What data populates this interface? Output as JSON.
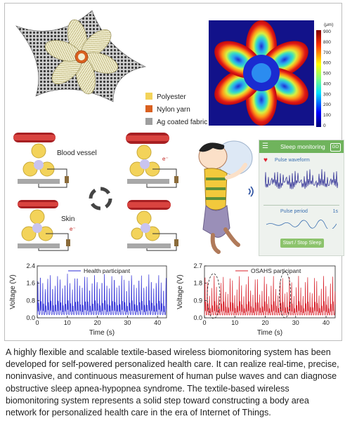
{
  "figure": {
    "legend": [
      {
        "label": "Polyester",
        "color": "#f3d35a"
      },
      {
        "label": "Nylon yarn",
        "color": "#d9601f"
      },
      {
        "label": "Ag coated fabric",
        "color": "#9e9e9e"
      }
    ],
    "colorbar": {
      "unit": "(μm)",
      "ticks": [
        "900",
        "800",
        "700",
        "600",
        "500",
        "400",
        "300",
        "200",
        "100",
        "0"
      ]
    },
    "mechanism": {
      "blood_vessel_label": "Blood vessel",
      "skin_label": "Skin",
      "electron_label": "e⁻"
    },
    "phone": {
      "title": "Sleep monitoring",
      "badge": "GO",
      "pulse_waveform_label": "Pulse waveform",
      "pulse_period_label": "Pulse period",
      "pulse_period_value": "1s",
      "button_label": "Start / Stop Sleep"
    }
  },
  "chart_data": [
    {
      "type": "line",
      "series": [
        {
          "name": "Health participant",
          "color": "#2b2bd6"
        }
      ],
      "xlabel": "Time (s)",
      "ylabel": "Voltage (V)",
      "xlim": [
        0,
        43
      ],
      "ylim": [
        0,
        2.4
      ],
      "xticks": [
        "0",
        "10",
        "20",
        "30",
        "40"
      ],
      "yticks": [
        "0.0",
        "0.8",
        "1.6",
        "2.4"
      ],
      "pulse_period_s": 0.82,
      "peak_range": [
        1.2,
        1.9
      ]
    },
    {
      "type": "line",
      "series": [
        {
          "name": "OSAHS participant",
          "color": "#d8202a"
        }
      ],
      "xlabel": "Time (s)",
      "ylabel": "Voltage (V)",
      "xlim": [
        0,
        43
      ],
      "ylim": [
        0,
        2.7
      ],
      "xticks": [
        "0",
        "10",
        "20",
        "30",
        "40"
      ],
      "yticks": [
        "0.0",
        "0.9",
        "1.8",
        "2.7"
      ],
      "pulse_period_s": 0.75,
      "peak_range": [
        1.0,
        2.1
      ]
    }
  ],
  "caption": "A highly flexible and scalable textile-based wireless biomonitoring system has been developed for self-powered personalized health care. It can realize real-time, precise, noninvasive, and continuous measurement of human pulse waves and can diagnose obstructive sleep apnea-hypopnea syndrome. The textile-based wireless biomonitoring system represents a solid step toward constructing a body area network for personalized health care in the era of Internet of Things."
}
